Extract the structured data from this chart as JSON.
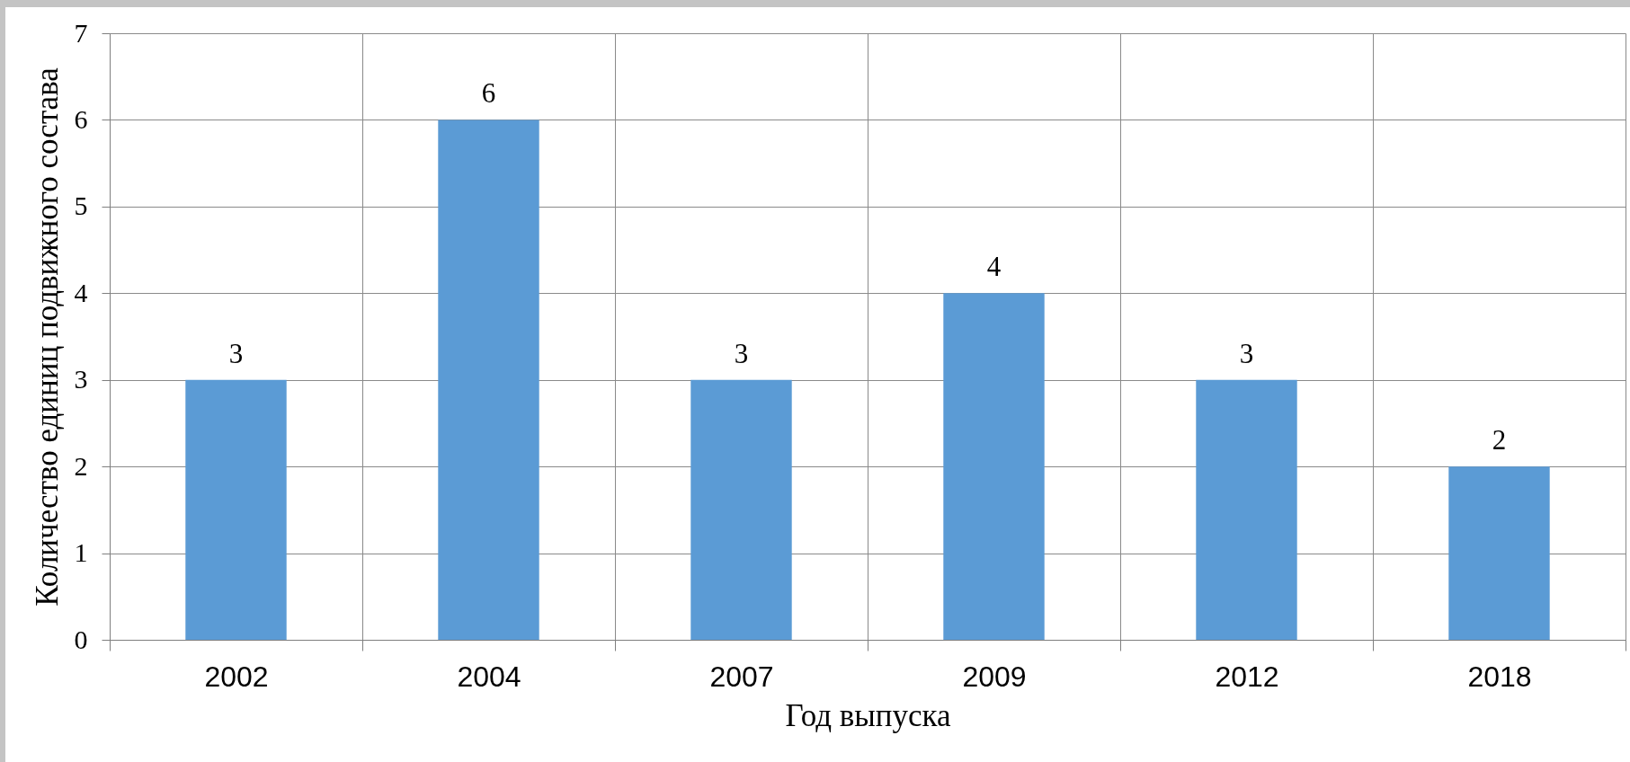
{
  "chart_data": {
    "type": "bar",
    "xlabel": "Год выпуска",
    "ylabel": "Количество единиц подвижного состава",
    "categories": [
      "2002",
      "2004",
      "2007",
      "2009",
      "2012",
      "2018"
    ],
    "values": [
      3,
      6,
      3,
      4,
      3,
      2
    ],
    "color": "#5b9bd5",
    "ylim": [
      0,
      7
    ],
    "yticks": [
      0,
      1,
      2,
      3,
      4,
      5,
      6,
      7
    ],
    "grid": true,
    "data_labels": true
  }
}
